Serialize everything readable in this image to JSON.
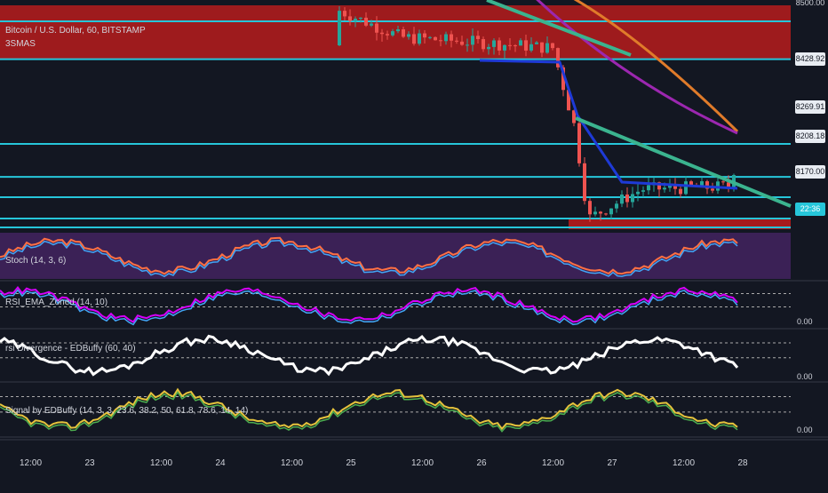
{
  "chart_data": {
    "type": "candlestick",
    "symbol_title": "Bitcoin / U.S. Dollar, 60, BITSTAMP",
    "ma_label": "3SMAS",
    "price_axis": {
      "labels": [
        "8500.00",
        "8428.92",
        "8269.91",
        "8208.18",
        "8170.00",
        "22:36"
      ],
      "current_price": 8170.0,
      "countdown": "22:36"
    },
    "x_axis": {
      "tick_labels": [
        "12:00",
        "23",
        "12:00",
        "24",
        "12:00",
        "25",
        "12:00",
        "26",
        "12:00",
        "27",
        "12:00",
        "28"
      ]
    },
    "horizontal_levels": [
      8500,
      8428.92,
      8269.91,
      8208.18,
      8170.0
    ],
    "resistance_zone": {
      "from": 8430,
      "to": 8530,
      "color": "#b71c1c"
    },
    "support_zone_color": "#b71c1c",
    "ohlc_hourly": [],
    "indicators": [
      {
        "name": "Stoch (14, 3, 6)"
      },
      {
        "name": "RSI_EMA_Zoned (14, 10)",
        "zero_label": "0.00"
      },
      {
        "name": "rsi Divergence - EDBuffy (60, 40)",
        "zero_label": "0.00"
      },
      {
        "name": "Signal by EDBuffy (14, 3, 3, 23.6, 38.2, 50, 61.8, 78.6, 14, 14)",
        "zero_label": "0.00"
      }
    ],
    "colors": {
      "background": "#131722",
      "up_candle": "#26a69a",
      "down_candle": "#ef5350",
      "level_line": "#26c6da",
      "trendline": "#3bb48f",
      "ma_orange": "#e07b2a",
      "ma_purple": "#9c27b0",
      "ma_blue": "#1e3ad6",
      "stoch_bg": "#3b2156"
    }
  }
}
